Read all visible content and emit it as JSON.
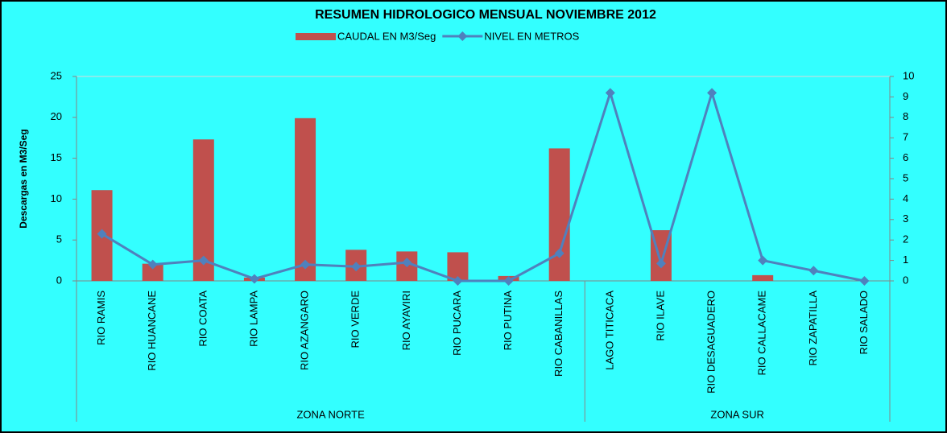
{
  "chart_data": {
    "type": "bar_line",
    "title": "RESUMEN HIDROLOGICO MENSUAL NOVIEMBRE 2012",
    "y_label": "Descargas en M3/Seg",
    "groups": [
      {
        "name": "ZONA NORTE",
        "categories": [
          "RIO RAMIS",
          "RIO HUANCANE",
          "RIO COATA",
          "RIO LAMPA",
          "RIO AZANGARO",
          "RIO VERDE",
          "RIO AYAVIRI",
          "RIO PUCARA",
          "RIO PUTINA",
          "RIO CABANILLAS"
        ]
      },
      {
        "name": "ZONA SUR",
        "categories": [
          "LAGO TITICACA",
          "RIO ILAVE",
          "RIO DESAGUADERO",
          "RIO CALLACAME",
          "RIO ZAPATILLA",
          "RIO SALADO"
        ]
      }
    ],
    "series": [
      {
        "name": "CAUDAL EN M3/Seg",
        "type": "bar",
        "color": "#c0504d",
        "axis": "y",
        "values": [
          11.1,
          2.1,
          17.3,
          0.4,
          19.9,
          3.8,
          3.6,
          3.5,
          0.6,
          16.2,
          null,
          6.2,
          null,
          0.7,
          null,
          null
        ]
      },
      {
        "name": "NIVEL EN METROS",
        "type": "line",
        "color": "#4f81bd",
        "axis": "y2",
        "values": [
          2.3,
          0.8,
          1.0,
          0.1,
          0.8,
          0.7,
          0.9,
          0.0,
          0.0,
          1.35,
          9.2,
          0.85,
          9.2,
          1.0,
          0.5,
          0.0
        ]
      }
    ],
    "legend": "top",
    "ylim": [
      0,
      25
    ],
    "yticks": [
      0,
      5,
      10,
      15,
      20,
      25
    ],
    "y2lim": [
      0,
      10
    ],
    "y2ticks": [
      0,
      1,
      2,
      3,
      4,
      5,
      6,
      7,
      8,
      9,
      10
    ]
  }
}
